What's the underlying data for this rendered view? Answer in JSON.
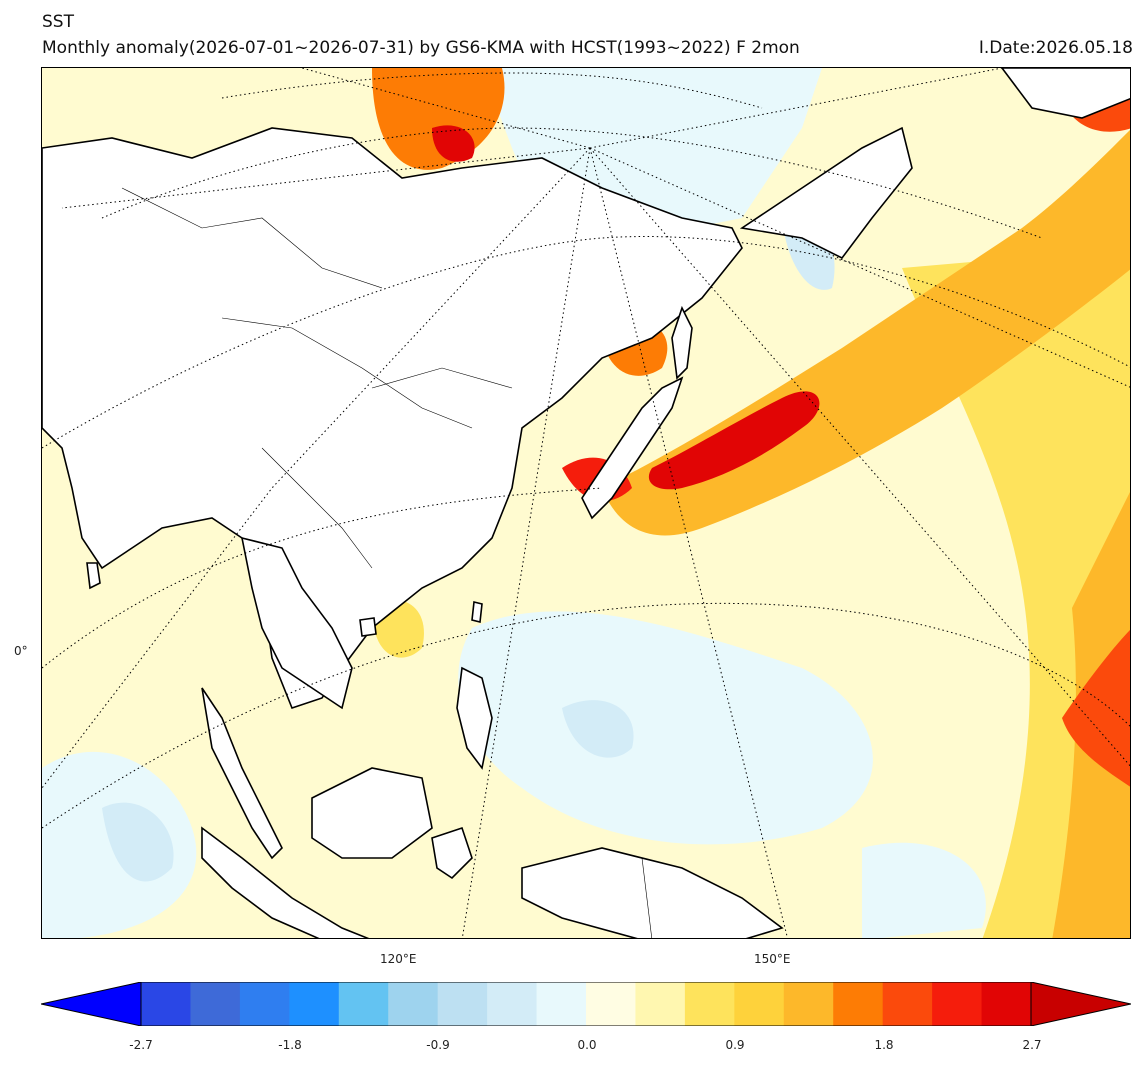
{
  "header": {
    "variable": "SST",
    "subtitle": "Monthly anomaly(2026-07-01~2026-07-31) by GS6-KMA with HCST(1993~2022) F 2mon",
    "issue_date": "I.Date:2026.05.18"
  },
  "map": {
    "lon_labels": [
      "120°E",
      "150°E"
    ],
    "lat_labels": [
      "0°"
    ],
    "region": "East Asia / Western Pacific"
  },
  "colorbar": {
    "tick_labels": [
      "-2.7",
      "-1.8",
      "-0.9",
      "0.0",
      "0.9",
      "1.8",
      "2.7"
    ],
    "colors": [
      "#0000ff",
      "#2a47e6",
      "#3e6ad8",
      "#2f7ef0",
      "#1e90ff",
      "#63c3f2",
      "#9ed3ee",
      "#bde0f2",
      "#d3ecf7",
      "#e8f9fc",
      "#fffde3",
      "#fff7b0",
      "#fee35c",
      "#fed23b",
      "#fdb82a",
      "#fd7c05",
      "#fb4a0c",
      "#f51d0c",
      "#e10505",
      "#c80000"
    ],
    "extend": "both"
  },
  "colors": {
    "land": "#ffffff",
    "neutral_ocean": "#fffbd0",
    "warm": "#fdb82a",
    "hot": "#e10505",
    "cool": "#d3ecf7"
  }
}
